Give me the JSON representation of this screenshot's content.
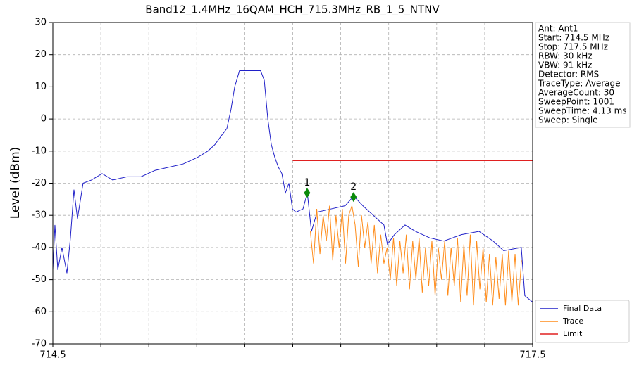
{
  "chart_data": {
    "type": "line",
    "title": "Band12_1.4MHz_16QAM_HCH_715.3MHz_RB_1_5_NTNV",
    "y_label": "Level (dBm)",
    "xlim": [
      714.5,
      717.5
    ],
    "xticks": [
      714.5,
      717.5
    ],
    "xminor": [
      714.8,
      715.1,
      715.4,
      715.7,
      716.0,
      716.3,
      716.6,
      716.9,
      717.2
    ],
    "ylim": [
      -70,
      30
    ],
    "yticks": [
      -70,
      -60,
      -50,
      -40,
      -30,
      -20,
      -10,
      0,
      10,
      20,
      30
    ],
    "grid": true,
    "legend": "lower right",
    "series": [
      {
        "name": "Final Data",
        "color": "#2020c8",
        "x": [
          714.5,
          714.513,
          714.531,
          714.557,
          714.588,
          714.61,
          714.632,
          714.654,
          714.689,
          714.742,
          714.808,
          714.874,
          714.963,
          715.051,
          715.139,
          715.227,
          715.315,
          715.403,
          715.469,
          715.513,
          715.557,
          715.588,
          715.614,
          715.637,
          715.667,
          715.711,
          715.755,
          715.799,
          715.822,
          715.844,
          715.866,
          715.888,
          715.91,
          715.932,
          715.954,
          715.976,
          715.998,
          716.02,
          716.064,
          716.091,
          716.117,
          716.152,
          716.24,
          716.328,
          716.381,
          716.438,
          716.504,
          716.57,
          716.592,
          716.636,
          716.702,
          716.768,
          716.856,
          716.944,
          717.055,
          717.165,
          717.253,
          717.319,
          717.429,
          717.451,
          717.5
        ],
        "values": [
          -47,
          -33,
          -47,
          -40,
          -48,
          -37,
          -22,
          -31,
          -20,
          -19,
          -17,
          -19,
          -18,
          -18,
          -16,
          -15,
          -14,
          -12,
          -10,
          -8,
          -5,
          -3,
          3,
          10,
          15,
          15,
          15,
          15,
          12,
          0,
          -8,
          -12,
          -15,
          -17,
          -23,
          -20,
          -28,
          -29,
          -28,
          -23,
          -35,
          -29,
          -28,
          -27,
          -24,
          -27,
          -30,
          -33,
          -39,
          -36,
          -33,
          -35,
          -37,
          -38,
          -36,
          -35,
          -38,
          -41,
          -40,
          -55,
          -57
        ]
      },
      {
        "name": "Trace",
        "color": "#ff8c1a",
        "x": [
          716.11,
          716.13,
          716.15,
          716.17,
          716.19,
          716.21,
          716.23,
          716.25,
          716.27,
          716.29,
          716.31,
          716.33,
          716.35,
          716.37,
          716.39,
          716.41,
          716.43,
          716.45,
          716.47,
          716.49,
          716.51,
          716.53,
          716.55,
          716.57,
          716.59,
          716.61,
          716.63,
          716.65,
          716.67,
          716.69,
          716.71,
          716.73,
          716.75,
          716.77,
          716.79,
          716.81,
          716.83,
          716.85,
          716.87,
          716.89,
          716.91,
          716.93,
          716.95,
          716.97,
          716.99,
          717.01,
          717.03,
          717.05,
          717.07,
          717.09,
          717.11,
          717.13,
          717.15,
          717.17,
          717.19,
          717.21,
          717.23,
          717.25,
          717.27,
          717.29,
          717.31,
          717.33,
          717.35,
          717.37,
          717.39,
          717.41,
          717.43
        ],
        "values": [
          -35,
          -45,
          -28,
          -42,
          -30,
          -38,
          -27,
          -44,
          -30,
          -40,
          -28,
          -45,
          -30,
          -27,
          -33,
          -46,
          -30,
          -40,
          -32,
          -45,
          -33,
          -48,
          -36,
          -45,
          -40,
          -50,
          -37,
          -52,
          -38,
          -48,
          -36,
          -53,
          -38,
          -50,
          -37,
          -54,
          -40,
          -52,
          -38,
          -55,
          -40,
          -50,
          -38,
          -55,
          -40,
          -52,
          -37,
          -57,
          -39,
          -55,
          -36,
          -58,
          -38,
          -53,
          -40,
          -57,
          -42,
          -58,
          -43,
          -56,
          -42,
          -58,
          -41,
          -57,
          -42,
          -58,
          -44
        ]
      },
      {
        "name": "Limit",
        "color": "#e02020",
        "x": [
          716.0,
          717.5
        ],
        "values": [
          -13,
          -13
        ]
      }
    ],
    "markers": [
      {
        "label": "1",
        "x": 716.09,
        "value": -23,
        "color": "#0a8a0a"
      },
      {
        "label": "2",
        "x": 716.38,
        "value": -24.3,
        "color": "#0a8a0a"
      }
    ],
    "info": [
      "Ant: Ant1",
      "Start: 714.5 MHz",
      "Stop: 717.5 MHz",
      "RBW: 30 kHz",
      "VBW: 91 kHz",
      "Detector: RMS",
      "TraceType: Average",
      "AverageCount: 30",
      "SweepPoint: 1001",
      "SweepTime: 4.13 ms",
      "Sweep: Single"
    ]
  }
}
